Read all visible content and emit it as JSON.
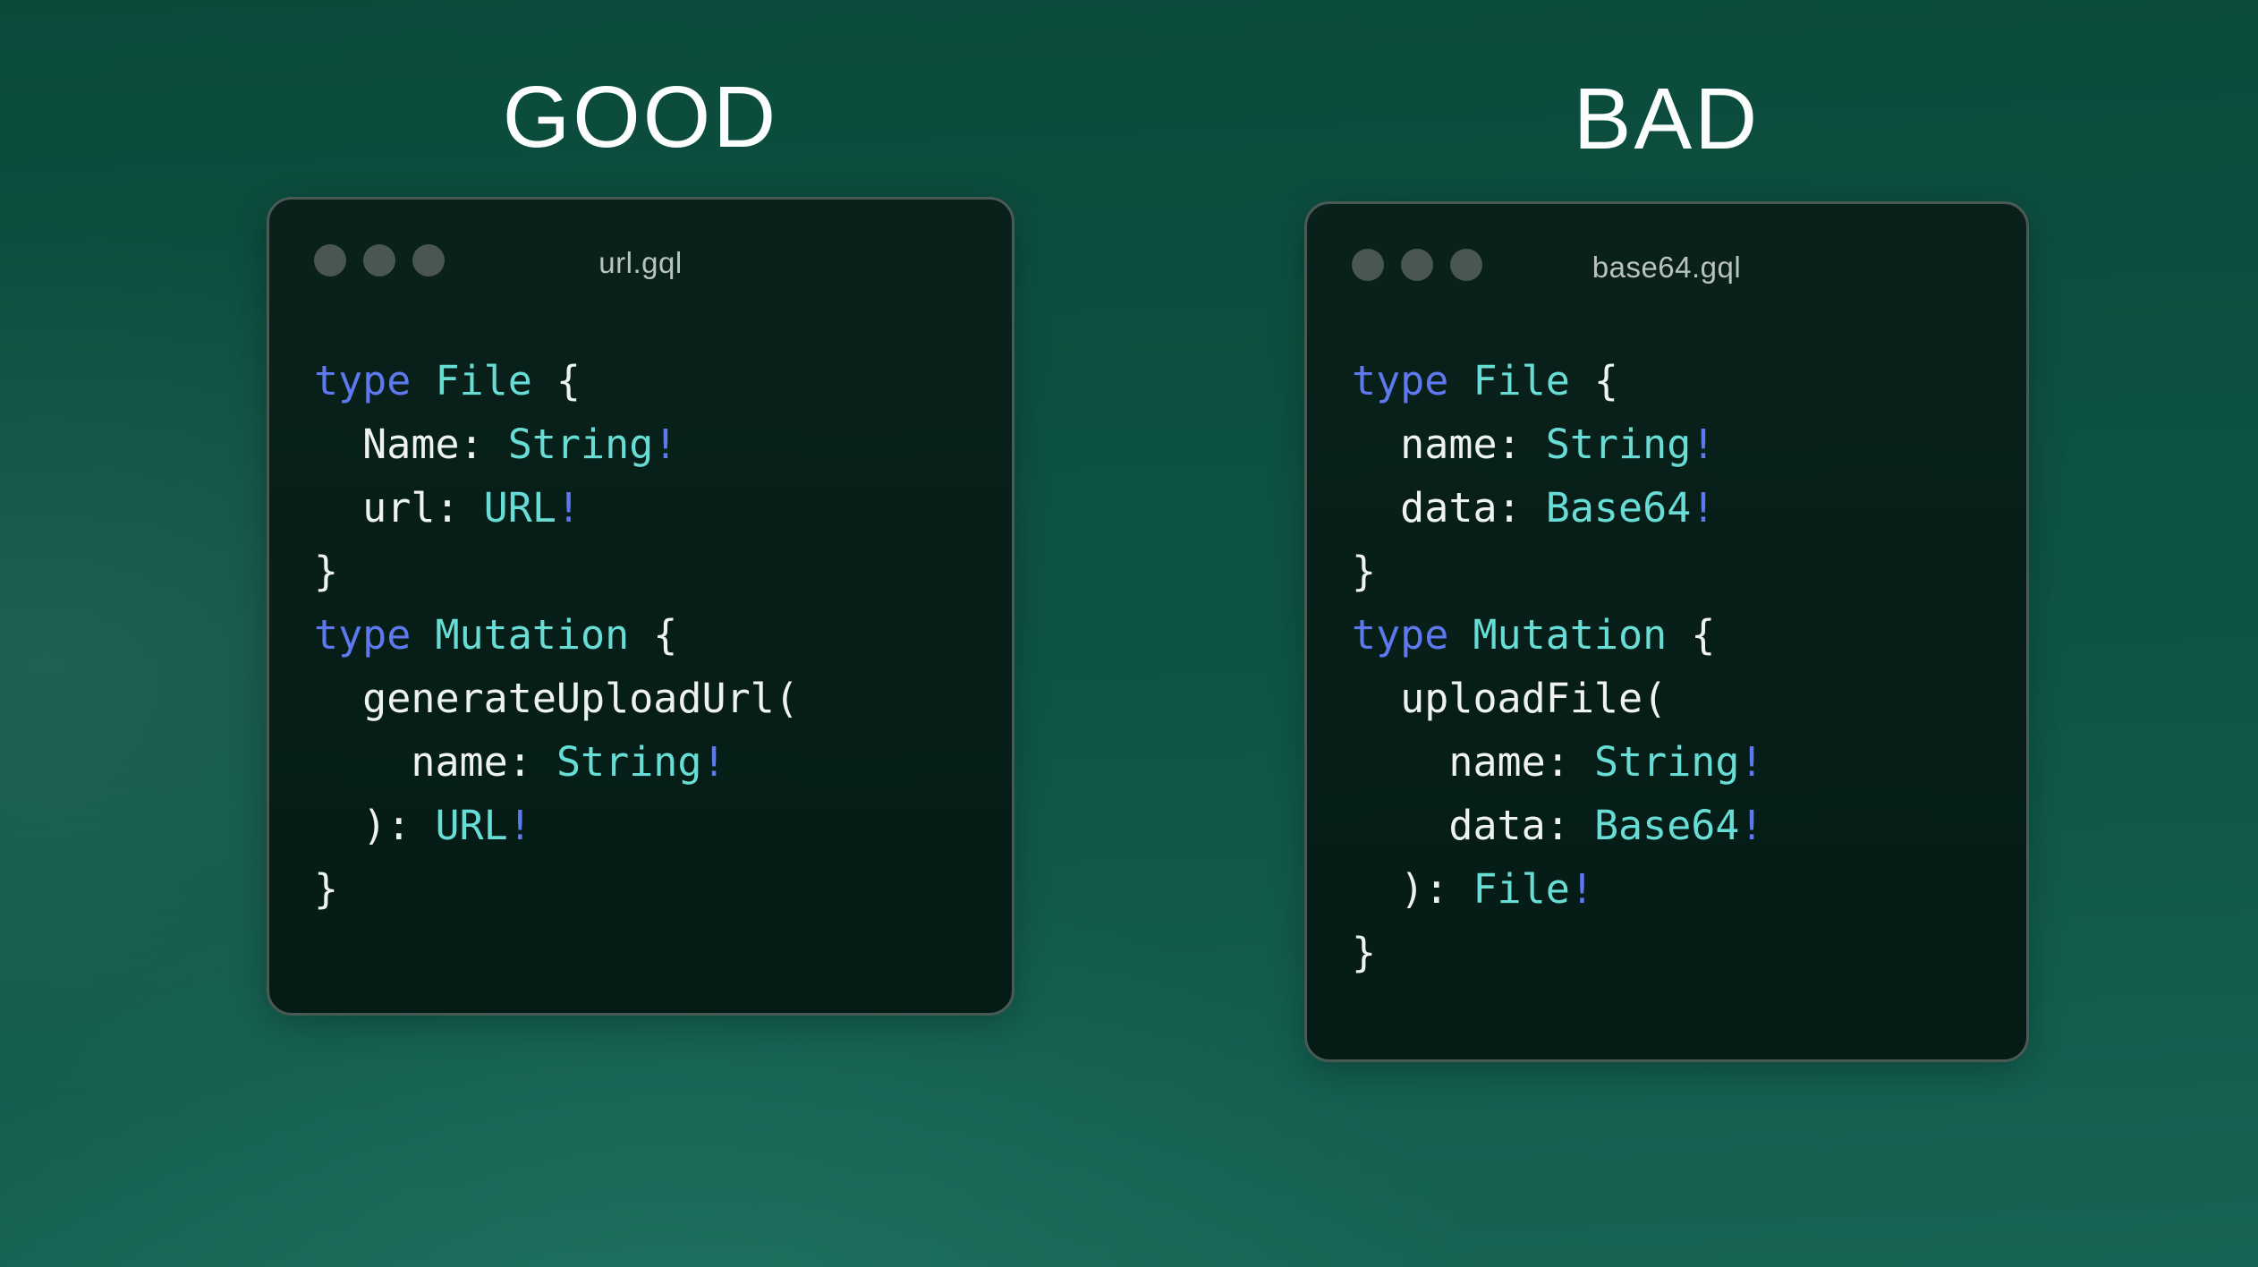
{
  "colors": {
    "background_top": "#0b4a3b",
    "background_bottom": "#166455",
    "panel_title_text": "#fcfdfd",
    "window_border": "#4b5955",
    "window_bg_top": "#0a211b",
    "window_bg_bottom": "#051c16",
    "window_dot": "#4a5652",
    "filename_text": "#b9c2bf",
    "token_keyword": "#5e79ef",
    "token_typename": "#68ddd6",
    "token_plain": "#eef2f0",
    "token_bang": "#5e79ef"
  },
  "panels": [
    {
      "label": "GOOD",
      "filename": "url.gql",
      "code_text": "type File {\n  Name: String!\n  url: URL!\n}\ntype Mutation {\n  generateUploadUrl(\n    name: String!\n  ): URL!\n}",
      "code": [
        [
          [
            "kw",
            "type"
          ],
          [
            "pl",
            " "
          ],
          [
            "ty",
            "File"
          ],
          [
            "pl",
            " {"
          ]
        ],
        [
          [
            "pl",
            "  Name: "
          ],
          [
            "ty",
            "String"
          ],
          [
            "bang",
            "!"
          ]
        ],
        [
          [
            "pl",
            "  url: "
          ],
          [
            "ty",
            "URL"
          ],
          [
            "bang",
            "!"
          ]
        ],
        [
          [
            "pl",
            "}"
          ]
        ],
        [
          [
            "kw",
            "type"
          ],
          [
            "pl",
            " "
          ],
          [
            "ty",
            "Mutation"
          ],
          [
            "pl",
            " {"
          ]
        ],
        [
          [
            "pl",
            "  generateUploadUrl("
          ]
        ],
        [
          [
            "pl",
            "    name: "
          ],
          [
            "ty",
            "String"
          ],
          [
            "bang",
            "!"
          ]
        ],
        [
          [
            "pl",
            "  ): "
          ],
          [
            "ty",
            "URL"
          ],
          [
            "bang",
            "!"
          ]
        ],
        [
          [
            "pl",
            "}"
          ]
        ]
      ]
    },
    {
      "label": "BAD",
      "filename": "base64.gql",
      "code_text": "type File {\n  name: String!\n  data: Base64!\n}\ntype Mutation {\n  uploadFile(\n    name: String!\n    data: Base64!\n  ): File!\n}",
      "code": [
        [
          [
            "kw",
            "type"
          ],
          [
            "pl",
            " "
          ],
          [
            "ty",
            "File"
          ],
          [
            "pl",
            " {"
          ]
        ],
        [
          [
            "pl",
            "  name: "
          ],
          [
            "ty",
            "String"
          ],
          [
            "bang",
            "!"
          ]
        ],
        [
          [
            "pl",
            "  data: "
          ],
          [
            "ty",
            "Base64"
          ],
          [
            "bang",
            "!"
          ]
        ],
        [
          [
            "pl",
            "}"
          ]
        ],
        [
          [
            "kw",
            "type"
          ],
          [
            "pl",
            " "
          ],
          [
            "ty",
            "Mutation"
          ],
          [
            "pl",
            " {"
          ]
        ],
        [
          [
            "pl",
            "  uploadFile("
          ]
        ],
        [
          [
            "pl",
            "    name: "
          ],
          [
            "ty",
            "String"
          ],
          [
            "bang",
            "!"
          ]
        ],
        [
          [
            "pl",
            "    data: "
          ],
          [
            "ty",
            "Base64"
          ],
          [
            "bang",
            "!"
          ]
        ],
        [
          [
            "pl",
            "  ): "
          ],
          [
            "ty",
            "File"
          ],
          [
            "bang",
            "!"
          ]
        ],
        [
          [
            "pl",
            "}"
          ]
        ]
      ]
    }
  ]
}
